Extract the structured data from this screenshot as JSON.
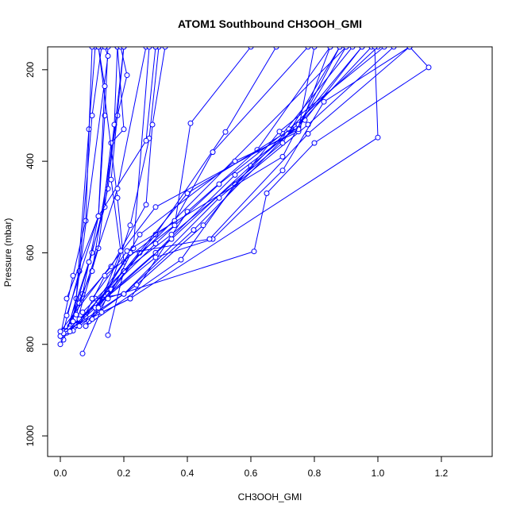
{
  "chart_data": {
    "type": "line",
    "title": "ATOM1 Southbound CH3OOH_GMI",
    "xlabel": "CH3OOH_GMI",
    "ylabel": "Pressure (mbar)",
    "xlim": [
      -0.04,
      1.36
    ],
    "ylim": [
      1045,
      150
    ],
    "y_reversed": true,
    "x_ticks": [
      "0.0",
      "0.2",
      "0.4",
      "0.6",
      "0.8",
      "1.0",
      "1.2"
    ],
    "x_tick_values": [
      0,
      0.2,
      0.4,
      0.6,
      0.8,
      1.0,
      1.2
    ],
    "y_ticks": [
      "200",
      "400",
      "600",
      "800",
      "1000"
    ],
    "y_tick_values": [
      200,
      400,
      600,
      800,
      1000
    ],
    "grid": false,
    "line_color": "#0000ff",
    "series": [
      {
        "values": [
          [
            0.01,
            770
          ],
          [
            0.06,
            640
          ],
          [
            0.1,
            300
          ],
          [
            0.13,
            150
          ]
        ]
      },
      {
        "values": [
          [
            0.02,
            775
          ],
          [
            0.05,
            700
          ],
          [
            0.09,
            330
          ],
          [
            0.11,
            150
          ]
        ]
      },
      {
        "values": [
          [
            0.0,
            782
          ],
          [
            0.04,
            650
          ],
          [
            0.08,
            530
          ],
          [
            0.1,
            150
          ]
        ]
      },
      {
        "values": [
          [
            0.01,
            790
          ],
          [
            0.07,
            690
          ],
          [
            0.12,
            520
          ],
          [
            0.14,
            300
          ],
          [
            0.15,
            150
          ]
        ]
      },
      {
        "values": [
          [
            0.03,
            760
          ],
          [
            0.1,
            600
          ],
          [
            0.15,
            460
          ],
          [
            0.2,
            150
          ]
        ]
      },
      {
        "values": [
          [
            0.02,
            770
          ],
          [
            0.09,
            620
          ],
          [
            0.14,
            500
          ],
          [
            0.17,
            320
          ],
          [
            0.18,
            150
          ]
        ]
      },
      {
        "values": [
          [
            0.05,
            755
          ],
          [
            0.12,
            590
          ],
          [
            0.16,
            360
          ],
          [
            0.2,
            330
          ],
          [
            0.18,
            150
          ]
        ]
      },
      {
        "values": [
          [
            0.04,
            750
          ],
          [
            0.15,
            170
          ],
          [
            0.14,
            150
          ]
        ]
      },
      {
        "values": [
          [
            0.08,
            740
          ],
          [
            0.2,
            620
          ],
          [
            0.18,
            480
          ],
          [
            0.12,
            150
          ]
        ]
      },
      {
        "values": [
          [
            0.07,
            820
          ],
          [
            0.15,
            690
          ],
          [
            0.22,
            540
          ],
          [
            0.28,
            350
          ],
          [
            0.31,
            150
          ]
        ]
      },
      {
        "values": [
          [
            0.02,
            737
          ],
          [
            0.12,
            520
          ],
          [
            0.14,
            236
          ],
          [
            0.12,
            150
          ]
        ]
      },
      {
        "values": [
          [
            0.0,
            800
          ],
          [
            0.1,
            640
          ],
          [
            0.18,
            300
          ],
          [
            0.21,
            212
          ],
          [
            0.19,
            150
          ]
        ]
      },
      {
        "values": [
          [
            0.06,
            710
          ],
          [
            0.16,
            630
          ],
          [
            0.27,
            495
          ],
          [
            0.29,
            320
          ],
          [
            0.33,
            150
          ]
        ]
      },
      {
        "values": [
          [
            0.01,
            772
          ],
          [
            0.22,
            700
          ],
          [
            0.4,
            510
          ],
          [
            0.62,
            375
          ],
          [
            0.85,
            150
          ]
        ]
      },
      {
        "values": [
          [
            0.03,
            765
          ],
          [
            0.3,
            600
          ],
          [
            0.55,
            430
          ],
          [
            0.75,
            325
          ],
          [
            0.9,
            150
          ]
        ]
      },
      {
        "values": [
          [
            0.05,
            758
          ],
          [
            0.35,
            570
          ],
          [
            0.6,
            410
          ],
          [
            0.77,
            310
          ],
          [
            0.95,
            150
          ]
        ]
      },
      {
        "values": [
          [
            0.02,
            772
          ],
          [
            0.3,
            580
          ],
          [
            0.5,
            450
          ],
          [
            0.7,
            340
          ],
          [
            0.92,
            150
          ]
        ]
      },
      {
        "values": [
          [
            0.08,
            760
          ],
          [
            0.38,
            615
          ],
          [
            0.55,
            450
          ],
          [
            0.72,
            330
          ],
          [
            1.0,
            150
          ]
        ]
      },
      {
        "values": [
          [
            0.04,
            770
          ],
          [
            0.24,
            670
          ],
          [
            0.45,
            540
          ],
          [
            0.69,
            335
          ],
          [
            1.02,
            150
          ]
        ]
      },
      {
        "values": [
          [
            0.01,
            776
          ],
          [
            0.2,
            690
          ],
          [
            0.5,
            480
          ],
          [
            0.78,
            320
          ],
          [
            1.05,
            150
          ]
        ]
      },
      {
        "values": [
          [
            0.06,
            745
          ],
          [
            0.3,
            610
          ],
          [
            0.48,
            570
          ],
          [
            0.7,
            420
          ],
          [
            0.83,
            270
          ],
          [
            1.1,
            150
          ]
        ]
      },
      {
        "values": [
          [
            0.12,
            705
          ],
          [
            0.61,
            597
          ],
          [
            0.65,
            470
          ],
          [
            0.8,
            360
          ],
          [
            1.16,
            195
          ],
          [
            1.1,
            150
          ]
        ]
      },
      {
        "values": [
          [
            0.11,
            700
          ],
          [
            0.2,
            690
          ],
          [
            0.42,
            550
          ],
          [
            0.74,
            325
          ],
          [
            0.95,
            150
          ]
        ]
      },
      {
        "values": [
          [
            0.09,
            750
          ],
          [
            0.16,
            680
          ],
          [
            0.3,
            560
          ],
          [
            0.52,
            336
          ],
          [
            0.68,
            150
          ]
        ]
      },
      {
        "values": [
          [
            0.1,
            745
          ],
          [
            0.25,
            600
          ],
          [
            0.36,
            540
          ],
          [
            0.41,
            317
          ],
          [
            0.6,
            150
          ]
        ]
      },
      {
        "values": [
          [
            0.03,
            772
          ],
          [
            0.2,
            640
          ],
          [
            0.35,
            560
          ],
          [
            0.7,
            360
          ],
          [
            0.88,
            150
          ]
        ]
      },
      {
        "values": [
          [
            0.15,
            780
          ],
          [
            0.2,
            640
          ],
          [
            0.4,
            470
          ],
          [
            0.75,
            320
          ],
          [
            0.98,
            150
          ]
        ]
      },
      {
        "values": [
          [
            0.13,
            730
          ],
          [
            0.22,
            700
          ],
          [
            1.0,
            348
          ],
          [
            0.99,
            150
          ]
        ]
      },
      {
        "values": [
          [
            0.07,
            730
          ],
          [
            0.9,
            150
          ],
          [
            0.3,
            150
          ]
        ]
      },
      {
        "values": [
          [
            0.02,
            700
          ],
          [
            0.12,
            520
          ],
          [
            0.27,
            355
          ],
          [
            0.3,
            150
          ]
        ]
      },
      {
        "values": [
          [
            0.05,
            735
          ],
          [
            0.18,
            460
          ],
          [
            0.27,
            150
          ]
        ]
      },
      {
        "values": [
          [
            0.15,
            700
          ],
          [
            0.23,
            590
          ],
          [
            0.28,
            150
          ]
        ]
      },
      {
        "values": [
          [
            0.08,
            760
          ],
          [
            0.25,
            560
          ],
          [
            0.55,
            400
          ],
          [
            0.75,
            335
          ],
          [
            0.85,
            150
          ]
        ]
      },
      {
        "values": [
          [
            0.11,
            720
          ],
          [
            0.22,
            600
          ],
          [
            0.47,
            570
          ],
          [
            0.78,
            340
          ],
          [
            1.1,
            150
          ]
        ]
      },
      {
        "values": [
          [
            0.0,
            772
          ],
          [
            0.3,
            500
          ],
          [
            0.75,
            330
          ],
          [
            0.8,
            150
          ]
        ]
      },
      {
        "values": [
          [
            0.12,
            720
          ],
          [
            0.19,
            596
          ],
          [
            0.16,
            440
          ],
          [
            0.2,
            150
          ]
        ]
      },
      {
        "values": [
          [
            0.06,
            760
          ],
          [
            0.14,
            650
          ],
          [
            0.36,
            530
          ],
          [
            0.48,
            380
          ],
          [
            0.78,
            150
          ]
        ]
      },
      {
        "values": [
          [
            0.1,
            700
          ],
          [
            0.21,
            596
          ],
          [
            0.7,
            390
          ],
          [
            0.88,
            150
          ]
        ]
      }
    ]
  }
}
